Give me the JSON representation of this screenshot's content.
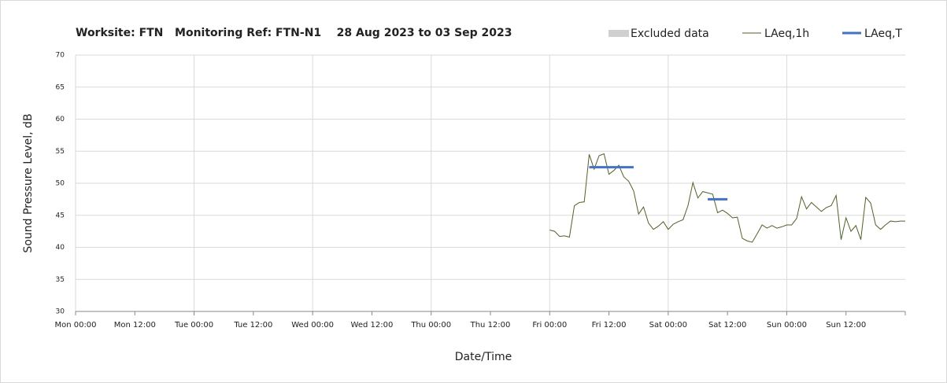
{
  "chart_data": {
    "type": "line",
    "title": "Worksite: FTN   Monitoring Ref: FTN-N1    28 Aug 2023 to 03 Sep 2023",
    "xlabel": "Date/Time",
    "ylabel": "Sound Pressure Level, dB",
    "xlim": [
      0,
      168
    ],
    "ylim": [
      30,
      70
    ],
    "xticks": [
      {
        "value": 0,
        "label": "Mon 00:00"
      },
      {
        "value": 12,
        "label": "Mon 12:00"
      },
      {
        "value": 24,
        "label": "Tue 00:00"
      },
      {
        "value": 36,
        "label": "Tue 12:00"
      },
      {
        "value": 48,
        "label": "Wed 00:00"
      },
      {
        "value": 60,
        "label": "Wed 12:00"
      },
      {
        "value": 72,
        "label": "Thu 00:00"
      },
      {
        "value": 84,
        "label": "Thu 12:00"
      },
      {
        "value": 96,
        "label": "Fri 00:00"
      },
      {
        "value": 108,
        "label": "Fri 12:00"
      },
      {
        "value": 120,
        "label": "Sat 00:00"
      },
      {
        "value": 132,
        "label": "Sat 12:00"
      },
      {
        "value": 144,
        "label": "Sun 00:00"
      },
      {
        "value": 156,
        "label": "Sun 12:00"
      }
    ],
    "yticks": [
      30,
      35,
      40,
      45,
      50,
      55,
      60,
      65,
      70
    ],
    "grid": true,
    "legend": "top-right",
    "series": [
      {
        "name": "Excluded data",
        "color": "#d0d0d0",
        "x": [],
        "values": []
      },
      {
        "name": "LAeq,1h",
        "color": "#4f6228",
        "x": [
          96,
          97,
          98,
          99,
          100,
          101,
          102,
          103,
          104,
          105,
          106,
          107,
          108,
          109,
          110,
          111,
          112,
          113,
          114,
          115,
          116,
          117,
          118,
          119,
          120,
          121,
          122,
          123,
          124,
          125,
          126,
          127,
          128,
          129,
          130,
          131,
          132,
          133,
          134,
          135,
          136,
          137,
          138,
          139,
          140,
          141,
          142,
          143,
          144,
          145,
          146,
          147,
          148,
          149,
          150,
          151,
          152,
          153,
          154,
          155,
          156,
          157,
          158,
          159,
          160,
          161,
          162,
          163,
          164,
          165,
          166,
          167,
          168
        ],
        "values": [
          42.7,
          42.5,
          41.7,
          41.8,
          41.6,
          46.5,
          47.0,
          47.1,
          54.5,
          52.2,
          54.3,
          54.6,
          51.4,
          52.0,
          52.8,
          51.0,
          50.3,
          48.8,
          45.2,
          46.3,
          43.8,
          42.8,
          43.3,
          44.0,
          42.8,
          43.6,
          44.0,
          44.3,
          46.5,
          50.1,
          47.7,
          48.7,
          48.5,
          48.3,
          45.4,
          45.8,
          45.3,
          44.6,
          44.7,
          41.4,
          41.0,
          40.8,
          42.1,
          43.5,
          43.0,
          43.4,
          43.0,
          43.2,
          43.5,
          43.5,
          44.5,
          47.9,
          46.0,
          47.0,
          46.3,
          45.6,
          46.2,
          46.5,
          48.1,
          41.2,
          44.6,
          42.5,
          43.4,
          41.2,
          47.8,
          46.9,
          43.5,
          42.8,
          43.5,
          44.1,
          44.0,
          44.1,
          44.1
        ]
      },
      {
        "name": "LAeq,T",
        "color": "#4472c4",
        "x": [
          104,
          113,
          120,
          128,
          132
        ],
        "values": [
          52.5,
          52.5,
          null,
          47.5,
          47.5
        ]
      }
    ]
  }
}
